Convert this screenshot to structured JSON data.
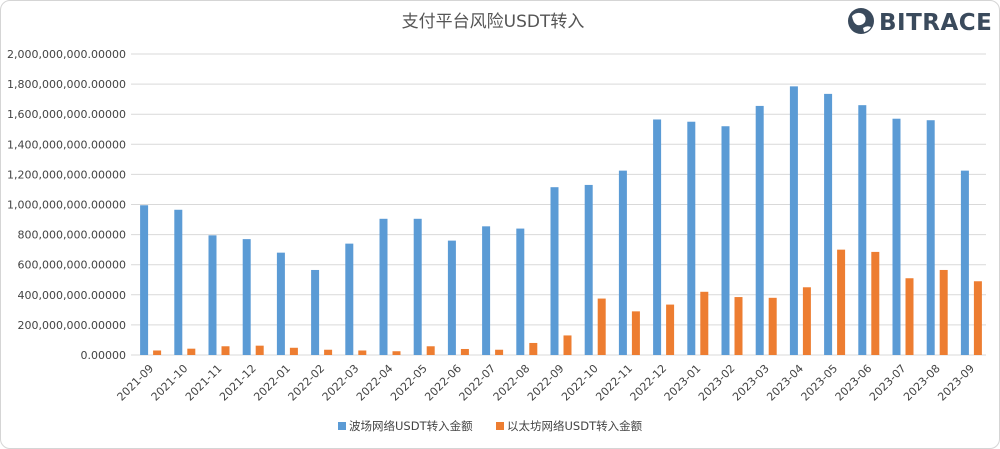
{
  "chart_data": {
    "type": "bar",
    "title": "支付平台风险USDT转入",
    "categories": [
      "2021-09",
      "2021-10",
      "2021-11",
      "2021-12",
      "2022-01",
      "2022-02",
      "2022-03",
      "2022-04",
      "2022-05",
      "2022-06",
      "2022-07",
      "2022-08",
      "2022-09",
      "2022-10",
      "2022-11",
      "2022-12",
      "2023-01",
      "2023-02",
      "2023-03",
      "2023-04",
      "2023-05",
      "2023-06",
      "2023-07",
      "2023-08",
      "2023-09"
    ],
    "series": [
      {
        "name": "波场网络USDT转入金额",
        "color": "#5b9bd5",
        "values": [
          995000000,
          965000000,
          795000000,
          770000000,
          680000000,
          565000000,
          740000000,
          905000000,
          905000000,
          760000000,
          855000000,
          840000000,
          1115000000,
          1130000000,
          1225000000,
          1565000000,
          1550000000,
          1520000000,
          1655000000,
          1785000000,
          1735000000,
          1660000000,
          1570000000,
          1560000000,
          1225000000
        ]
      },
      {
        "name": "以太坊网络USDT转入金额",
        "color": "#ed7d31",
        "values": [
          30000000,
          42000000,
          58000000,
          62000000,
          48000000,
          35000000,
          30000000,
          25000000,
          58000000,
          40000000,
          35000000,
          80000000,
          130000000,
          375000000,
          290000000,
          335000000,
          420000000,
          385000000,
          380000000,
          450000000,
          700000000,
          685000000,
          510000000,
          565000000,
          490000000
        ]
      }
    ],
    "ylim": [
      0,
      2000000000
    ],
    "yticks": [
      "0.00000",
      "200,000,000.00000",
      "400,000,000.00000",
      "600,000,000.00000",
      "800,000,000.00000",
      "1,000,000,000.00000",
      "1,200,000,000.00000",
      "1,400,000,000.00000",
      "1,600,000,000.00000",
      "1,800,000,000.00000",
      "2,000,000,000.00000"
    ],
    "grid": true,
    "legend_position": "bottom"
  },
  "logo": {
    "text": "BITRACE",
    "icon": "globe-icon"
  }
}
